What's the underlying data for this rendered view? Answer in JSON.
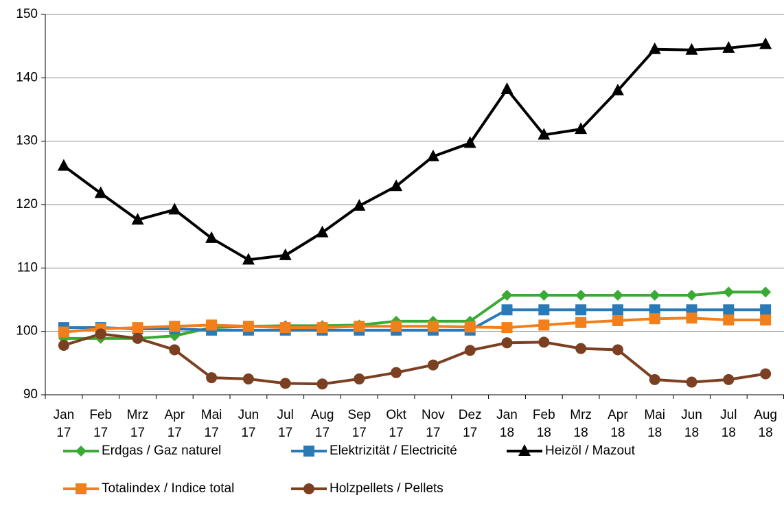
{
  "chart_data": {
    "type": "line",
    "categories": [
      "Jan 17",
      "Feb 17",
      "Mrz 17",
      "Apr 17",
      "Mai 17",
      "Jun 17",
      "Jul 17",
      "Aug 17",
      "Sep 17",
      "Okt 17",
      "Nov 17",
      "Dez 17",
      "Jan 18",
      "Feb 18",
      "Mrz 18",
      "Apr 18",
      "Mai 18",
      "Jun 18",
      "Jul 18",
      "Aug 18"
    ],
    "series": [
      {
        "name": "Erdgas / Gaz naturel",
        "color": "#3aaa35",
        "marker": "diamond",
        "values": [
          98.9,
          98.9,
          98.9,
          99.3,
          100.6,
          100.8,
          100.9,
          100.9,
          101.0,
          101.6,
          101.6,
          101.6,
          105.7,
          105.7,
          105.7,
          105.7,
          105.7,
          105.7,
          106.2,
          106.2
        ]
      },
      {
        "name": "Elektrizität / Electricité",
        "color": "#2a7ab8",
        "marker": "square",
        "values": [
          100.6,
          100.6,
          100.4,
          100.4,
          100.2,
          100.2,
          100.2,
          100.2,
          100.2,
          100.2,
          100.2,
          100.2,
          103.4,
          103.4,
          103.4,
          103.4,
          103.4,
          103.4,
          103.4,
          103.4
        ]
      },
      {
        "name": "Heizöl / Mazout",
        "color": "#000000",
        "marker": "triangle",
        "values": [
          126.1,
          121.8,
          117.6,
          119.2,
          114.7,
          111.3,
          112.0,
          115.6,
          119.8,
          122.9,
          127.6,
          129.7,
          138.2,
          131.0,
          131.9,
          138.0,
          144.5,
          144.4,
          144.7,
          145.3
        ]
      },
      {
        "name": "Totalindex / Indice total",
        "color": "#f07f1c",
        "marker": "square",
        "values": [
          99.9,
          100.4,
          100.6,
          100.8,
          101.0,
          100.8,
          100.6,
          100.6,
          100.8,
          100.8,
          100.8,
          100.7,
          100.6,
          101.0,
          101.4,
          101.7,
          102.0,
          102.1,
          101.8,
          101.8
        ]
      },
      {
        "name": "Holzpellets / Pellets",
        "color": "#7b3f22",
        "marker": "circle",
        "values": [
          97.8,
          99.6,
          98.9,
          97.1,
          92.7,
          92.5,
          91.8,
          91.7,
          92.5,
          93.5,
          94.7,
          97.0,
          98.2,
          98.3,
          97.3,
          97.1,
          92.4,
          92.0,
          92.4,
          93.3
        ]
      }
    ],
    "ylim": [
      90,
      150
    ],
    "yticks": [
      90,
      100,
      110,
      120,
      130,
      140,
      150
    ],
    "grid": true,
    "legend": "bottom"
  }
}
